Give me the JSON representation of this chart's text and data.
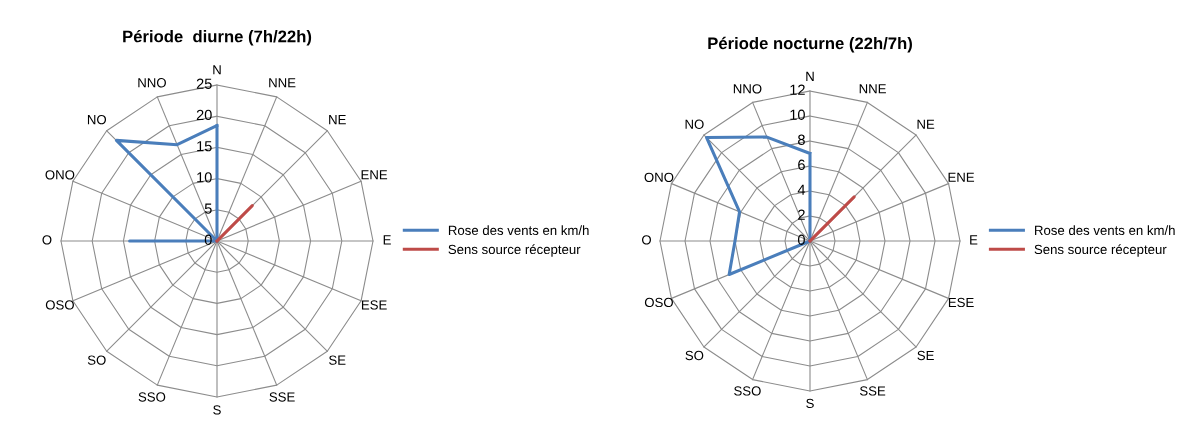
{
  "chart_data": [
    {
      "type": "radar",
      "title": "Période  diurne (7h/22h)",
      "categories": [
        "N",
        "NNE",
        "NE",
        "ENE",
        "E",
        "ESE",
        "SE",
        "SSE",
        "S",
        "SSO",
        "SO",
        "OSO",
        "O",
        "ONO",
        "NO",
        "NNO"
      ],
      "ylim": [
        0,
        25
      ],
      "yticks": [
        0,
        5,
        10,
        15,
        20,
        25
      ],
      "legend": "right",
      "marker": "none",
      "series": [
        {
          "name": "Rose des vents en km/h",
          "color": "#4a7ebb",
          "values": [
            18.5,
            0,
            0,
            0,
            0,
            0,
            0,
            0,
            0,
            0,
            0,
            0,
            14,
            0,
            22.8,
            16.7
          ]
        },
        {
          "name": "Sens source récepteur",
          "color": "#be4b48",
          "values": [
            0,
            0,
            8,
            0,
            0,
            0,
            0,
            0,
            0,
            0,
            0,
            0,
            0,
            0,
            0,
            0
          ]
        }
      ]
    },
    {
      "type": "radar",
      "title": "Période nocturne (22h/7h)",
      "categories": [
        "N",
        "NNE",
        "NE",
        "ENE",
        "E",
        "ESE",
        "SE",
        "SSE",
        "S",
        "SSO",
        "SO",
        "OSO",
        "O",
        "ONO",
        "NO",
        "NNO"
      ],
      "ylim": [
        0,
        12
      ],
      "yticks": [
        0,
        2,
        4,
        6,
        8,
        10,
        12
      ],
      "legend": "right",
      "marker": "none",
      "series": [
        {
          "name": "Rose des vents en km/h",
          "color": "#4a7ebb",
          "values": [
            7,
            0,
            0,
            0,
            0,
            0,
            0,
            0,
            0,
            0,
            0,
            7,
            6,
            6.1,
            11.7,
            9
          ]
        },
        {
          "name": "Sens source récepteur",
          "color": "#be4b48",
          "values": [
            0,
            0,
            5,
            0,
            0,
            0,
            0,
            0,
            0,
            0,
            0,
            0,
            0,
            0,
            0,
            0
          ]
        }
      ]
    }
  ]
}
